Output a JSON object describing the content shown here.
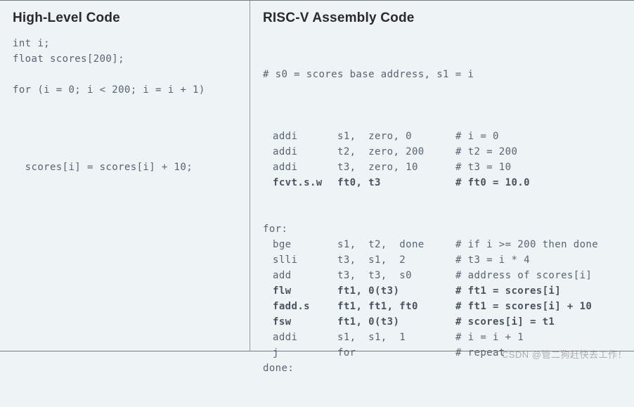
{
  "colors": {
    "background": "#eef3f6",
    "border": "#7a7a7a",
    "divider": "#8e9aa4",
    "heading_text": "#2a2a2a",
    "code_text": "#576471"
  },
  "typography": {
    "heading_fontsize": 19,
    "heading_weight": 700,
    "code_fontsize": 14,
    "code_lineheight": 22
  },
  "left": {
    "title": "High-Level Code",
    "lines": [
      "int i;",
      "float scores[200];",
      "",
      "for (i = 0; i < 200; i = i + 1)",
      "",
      "",
      "",
      "",
      "  scores[i] = scores[i] + 10;"
    ]
  },
  "right": {
    "title": "RISC-V Assembly Code",
    "intro": "# s0 = scores base address, s1 = i",
    "blocks": [
      {
        "type": "blank"
      },
      {
        "type": "instr",
        "indent": 1,
        "op": "addi",
        "args": "s1,  zero, 0",
        "comment": "# i = 0"
      },
      {
        "type": "instr",
        "indent": 1,
        "op": "addi",
        "args": "t2,  zero, 200",
        "comment": "# t2 = 200"
      },
      {
        "type": "instr",
        "indent": 1,
        "op": "addi",
        "args": "t3,  zero, 10",
        "comment": "# t3 = 10"
      },
      {
        "type": "instr",
        "indent": 1,
        "op": "fcvt.s.w",
        "args": "ft0, t3",
        "comment": "# ft0 = 10.0",
        "bold": true
      },
      {
        "type": "blank"
      },
      {
        "type": "blank"
      },
      {
        "type": "label",
        "text": "for:"
      },
      {
        "type": "instr",
        "indent": 1,
        "op": "bge",
        "args": "s1,  t2,  done",
        "comment": "# if i >= 200 then done"
      },
      {
        "type": "instr",
        "indent": 1,
        "op": "slli",
        "args": "t3,  s1,  2",
        "comment": "# t3 = i * 4"
      },
      {
        "type": "instr",
        "indent": 1,
        "op": "add",
        "args": "t3,  t3,  s0",
        "comment": "# address of scores[i]"
      },
      {
        "type": "instr",
        "indent": 1,
        "op": "flw",
        "args": "ft1, 0(t3)",
        "comment": "# ft1 = scores[i]",
        "bold": true
      },
      {
        "type": "instr",
        "indent": 1,
        "op": "fadd.s",
        "args": "ft1, ft1, ft0",
        "comment": "# ft1 = scores[i] + 10",
        "bold": true
      },
      {
        "type": "instr",
        "indent": 1,
        "op": "fsw",
        "args": "ft1, 0(t3)",
        "comment": "# scores[i] = t1",
        "bold": true
      },
      {
        "type": "instr",
        "indent": 1,
        "op": "addi",
        "args": "s1,  s1,  1",
        "comment": "# i = i + 1"
      },
      {
        "type": "instr",
        "indent": 1,
        "op": "j",
        "args": "for",
        "comment": "# repeat"
      },
      {
        "type": "label",
        "text": "done:"
      }
    ]
  },
  "watermark": "CSDN @管二狗赶快去工作！"
}
